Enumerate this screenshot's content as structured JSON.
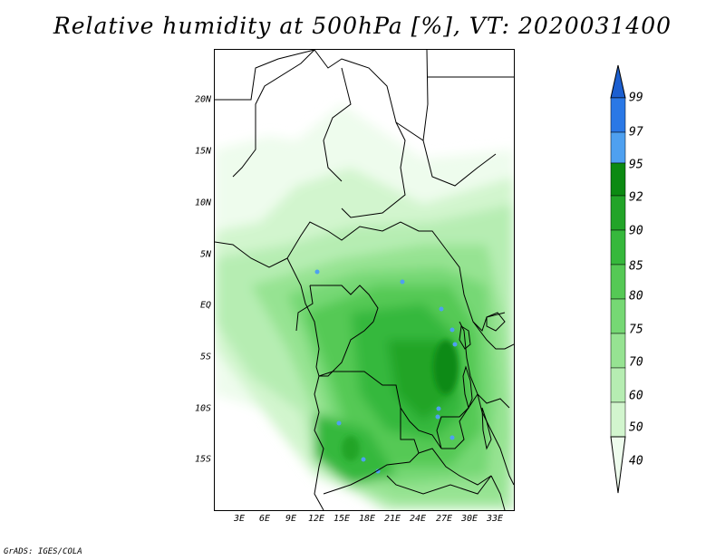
{
  "title": "Relative humidity at 500hPa [%], VT: 2020031400",
  "credit": "GrADS: IGES/COLA",
  "map": {
    "lat_labels": [
      "20N",
      "15N",
      "10N",
      "5N",
      "EQ",
      "5S",
      "10S",
      "15S"
    ],
    "lon_labels": [
      "3E",
      "6E",
      "9E",
      "12E",
      "15E",
      "18E",
      "21E",
      "24E",
      "27E",
      "30E",
      "33E"
    ]
  },
  "colorbar": {
    "labels": [
      "99",
      "97",
      "95",
      "92",
      "90",
      "85",
      "80",
      "75",
      "70",
      "60",
      "50",
      "40"
    ],
    "colors": [
      "#1c5fd0",
      "#2a78e6",
      "#4ea0f0",
      "#0c8a12",
      "#22a428",
      "#36b83c",
      "#55c955",
      "#76d874",
      "#96e392",
      "#b6edb2",
      "#d2f5ce",
      "#eefced"
    ]
  }
}
